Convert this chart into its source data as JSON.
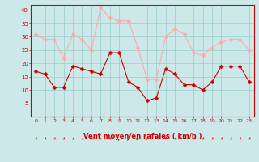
{
  "x": [
    0,
    1,
    2,
    3,
    4,
    5,
    6,
    7,
    8,
    9,
    10,
    11,
    12,
    13,
    14,
    15,
    16,
    17,
    18,
    19,
    20,
    21,
    22,
    23
  ],
  "wind_avg": [
    17,
    16,
    11,
    11,
    19,
    18,
    17,
    16,
    24,
    24,
    13,
    11,
    6,
    7,
    18,
    16,
    12,
    12,
    10,
    13,
    19,
    19,
    19,
    13
  ],
  "wind_gust": [
    31,
    29,
    29,
    22,
    31,
    29,
    25,
    41,
    37,
    36,
    36,
    26,
    14,
    14,
    30,
    33,
    31,
    24,
    23,
    26,
    28,
    29,
    29,
    25
  ],
  "avg_color": "#cc0000",
  "gust_color": "#ffaaaa",
  "bg_color": "#cce8e8",
  "grid_color": "#99cccc",
  "axis_color": "#cc0000",
  "xlabel": "Vent moyen/en rafales ( km/h )",
  "ylim": [
    0,
    42
  ],
  "yticks": [
    5,
    10,
    15,
    20,
    25,
    30,
    35,
    40
  ],
  "arrow_angles": [
    225,
    225,
    225,
    225,
    225,
    225,
    225,
    135,
    225,
    45,
    45,
    90,
    90,
    180,
    180,
    225,
    180,
    225,
    225,
    225,
    225,
    225,
    225,
    225
  ]
}
